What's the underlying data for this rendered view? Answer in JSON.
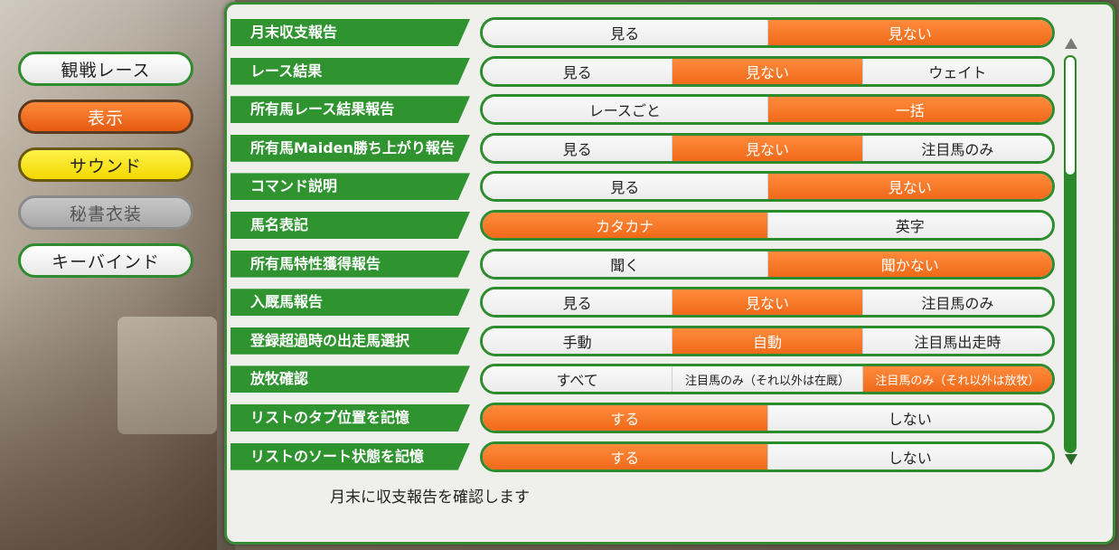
{
  "sidebar": {
    "items": [
      {
        "label": "観戦レース",
        "state": "normal"
      },
      {
        "label": "表示",
        "state": "active"
      },
      {
        "label": "サウンド",
        "state": "highlighted"
      },
      {
        "label": "秘書衣装",
        "state": "disabled"
      },
      {
        "label": "キーバインド",
        "state": "normal"
      }
    ]
  },
  "settings": [
    {
      "label": "月末収支報告",
      "options": [
        "見る",
        "見ない"
      ],
      "selected": 1
    },
    {
      "label": "レース結果",
      "options": [
        "見る",
        "見ない",
        "ウェイト"
      ],
      "selected": 1
    },
    {
      "label": "所有馬レース結果報告",
      "options": [
        "レースごと",
        "一括"
      ],
      "selected": 1
    },
    {
      "label": "所有馬Maiden勝ち上がり報告",
      "options": [
        "見る",
        "見ない",
        "注目馬のみ"
      ],
      "selected": 1
    },
    {
      "label": "コマンド説明",
      "options": [
        "見る",
        "見ない"
      ],
      "selected": 1
    },
    {
      "label": "馬名表記",
      "options": [
        "カタカナ",
        "英字"
      ],
      "selected": 0
    },
    {
      "label": "所有馬特性獲得報告",
      "options": [
        "聞く",
        "聞かない"
      ],
      "selected": 1
    },
    {
      "label": "入厩馬報告",
      "options": [
        "見る",
        "見ない",
        "注目馬のみ"
      ],
      "selected": 1
    },
    {
      "label": "登録超過時の出走馬選択",
      "options": [
        "手動",
        "自動",
        "注目馬出走時"
      ],
      "selected": 1
    },
    {
      "label": "放牧確認",
      "options": [
        "すべて",
        "注目馬のみ（それ以外は在厩）",
        "注目馬のみ（それ以外は放牧）"
      ],
      "selected": 2
    },
    {
      "label": "リストのタブ位置を記憶",
      "options": [
        "する",
        "しない"
      ],
      "selected": 0
    },
    {
      "label": "リストのソート状態を記憶",
      "options": [
        "する",
        "しない"
      ],
      "selected": 0
    }
  ],
  "description": "月末に収支報告を確認します",
  "colors": {
    "accent_green": "#2f9430",
    "selected_orange": "#f06a1a",
    "panel_bg": "#efefeb"
  },
  "icons": {
    "scroll_up": "triangle-up-icon",
    "scroll_down": "triangle-down-icon"
  }
}
